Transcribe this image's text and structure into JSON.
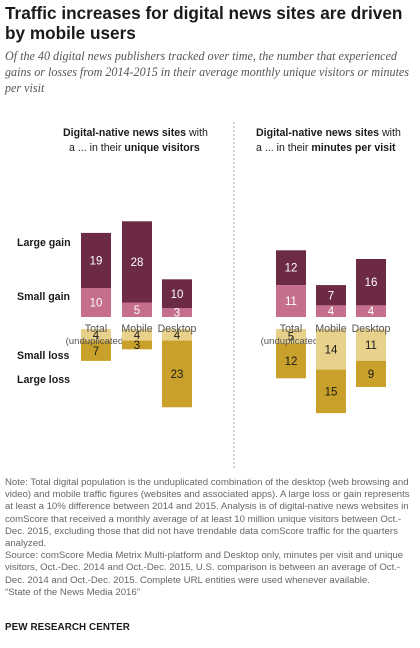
{
  "title": "Traffic increases for digital news sites are driven by mobile users",
  "subtitle": "Of the 40 digital news publishers tracked over time, the number that experienced gains or losses from 2014-2015 in their average monthly unique visitors or minutes per visit",
  "row_labels": {
    "large_gain": "Large gain",
    "small_gain": "Small gain",
    "small_loss": "Small loss",
    "large_loss": "Large loss"
  },
  "colors": {
    "large_gain": "#6d2a45",
    "small_gain": "#c66e8e",
    "small_loss": "#e8d18a",
    "large_loss": "#c9a02a"
  },
  "chart_data": [
    {
      "type": "bar",
      "title_bold": "Digital-native news sites",
      "title_mid": " with a ... in their ",
      "title_end": "unique visitors",
      "categories": [
        "Total\n(unduplicated)",
        "Mobile",
        "Desktop"
      ],
      "series": [
        {
          "name": "Large gain",
          "values": [
            19,
            28,
            10
          ]
        },
        {
          "name": "Small gain",
          "values": [
            10,
            5,
            3
          ]
        },
        {
          "name": "Small loss",
          "values": [
            4,
            4,
            4
          ]
        },
        {
          "name": "Large loss",
          "values": [
            7,
            3,
            23
          ]
        }
      ]
    },
    {
      "type": "bar",
      "title_bold": "Digital-native news sites",
      "title_mid": " with a ... in their ",
      "title_end": "minutes per visit",
      "categories": [
        "Total\n(unduplicated)",
        "Mobile",
        "Desktop"
      ],
      "series": [
        {
          "name": "Large gain",
          "values": [
            12,
            7,
            16
          ]
        },
        {
          "name": "Small gain",
          "values": [
            11,
            4,
            4
          ]
        },
        {
          "name": "Small loss",
          "values": [
            5,
            14,
            11
          ]
        },
        {
          "name": "Large loss",
          "values": [
            12,
            15,
            9
          ]
        }
      ]
    }
  ],
  "note": "Note: Total digital population is the unduplicated combination of the desktop (web browsing and video) and mobile traffic figures (websites and associated apps). A large loss or gain represents at least a 10% difference between 2014 and 2015. Analysis is of digital-native news websites in comScore that received a monthly average of at least 10 million unique visitors between Oct.-Dec. 2015, excluding those that did not have trendable data comScore traffic for the quarters analyzed.",
  "source": "Source: comScore Media Metrix Multi-platform and Desktop only, minutes per visit and unique visitors, Oct.-Dec. 2014 and Oct.-Dec. 2015, U.S. comparison is between an average of Oct.-Dec. 2014 and Oct.-Dec. 2015. Complete URL entities were used whenever available.",
  "report": "“State of the News Media 2016”",
  "org": "PEW RESEARCH CENTER"
}
